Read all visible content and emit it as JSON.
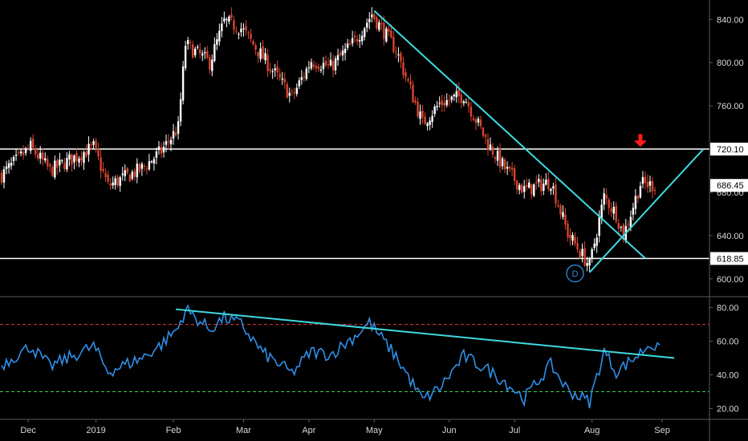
{
  "colors": {
    "background": "#000000",
    "up": "#ffffff",
    "down": "#d8452f",
    "trendline": "#3fd9e0",
    "rsi": "#2f8fe8",
    "rsi_overbought": "#e03a32",
    "rsi_oversold": "#3fd04a",
    "arrow": "#ff1a1a",
    "axis_text": "#d8d8d8"
  },
  "chart_data": [
    {
      "type": "candlestick",
      "ylim": [
        585,
        858
      ],
      "y_ticks": [
        "600.00",
        "640.00",
        "680.00",
        "720.00",
        "760.00",
        "800.00",
        "840.00"
      ],
      "price_labels": [
        {
          "value": 720.1,
          "text": "720.10"
        },
        {
          "value": 686.45,
          "text": "686.45"
        },
        {
          "value": 618.85,
          "text": "618.85"
        }
      ],
      "horizontal_lines": [
        720.1,
        618.85
      ],
      "trendlines": [
        {
          "from": {
            "day": 154,
            "price": 848
          },
          "to": {
            "day": 266,
            "price": 619
          }
        },
        {
          "from": {
            "day": 243,
            "price": 606
          },
          "to": {
            "day": 290,
            "price": 720
          }
        }
      ],
      "pattern_label": "D",
      "pattern_label_at": {
        "day": 237,
        "price": 605
      },
      "sell_arrow_at": {
        "day": 264,
        "price": 725
      },
      "key_points": [
        {
          "day": 0,
          "price": 696
        },
        {
          "day": 12,
          "price": 722
        },
        {
          "day": 20,
          "price": 700
        },
        {
          "day": 38,
          "price": 722
        },
        {
          "day": 44,
          "price": 686
        },
        {
          "day": 58,
          "price": 702
        },
        {
          "day": 66,
          "price": 718
        },
        {
          "day": 73,
          "price": 740
        },
        {
          "day": 76,
          "price": 817
        },
        {
          "day": 86,
          "price": 800
        },
        {
          "day": 92,
          "price": 838
        },
        {
          "day": 99,
          "price": 832
        },
        {
          "day": 108,
          "price": 805
        },
        {
          "day": 120,
          "price": 768
        },
        {
          "day": 128,
          "price": 802
        },
        {
          "day": 136,
          "price": 796
        },
        {
          "day": 146,
          "price": 820
        },
        {
          "day": 153,
          "price": 845
        },
        {
          "day": 163,
          "price": 812
        },
        {
          "day": 174,
          "price": 744
        },
        {
          "day": 181,
          "price": 762
        },
        {
          "day": 191,
          "price": 770
        },
        {
          "day": 201,
          "price": 725
        },
        {
          "day": 208,
          "price": 702
        },
        {
          "day": 216,
          "price": 682
        },
        {
          "day": 227,
          "price": 690
        },
        {
          "day": 234,
          "price": 642
        },
        {
          "day": 243,
          "price": 612
        },
        {
          "day": 249,
          "price": 676
        },
        {
          "day": 254,
          "price": 660
        },
        {
          "day": 257,
          "price": 640
        },
        {
          "day": 264,
          "price": 688
        },
        {
          "day": 270,
          "price": 686.45
        }
      ]
    },
    {
      "type": "line",
      "ylim": [
        15,
        86
      ],
      "y_ticks": [
        "20.00",
        "40.00",
        "60.00",
        "80.00"
      ],
      "overbought": 70,
      "oversold": 30,
      "trendline": {
        "from": {
          "day": 72,
          "value": 79
        },
        "to": {
          "day": 278,
          "value": 50
        }
      },
      "key_points": [
        {
          "day": 0,
          "value": 46
        },
        {
          "day": 12,
          "value": 57
        },
        {
          "day": 20,
          "value": 45
        },
        {
          "day": 38,
          "value": 57
        },
        {
          "day": 44,
          "value": 42
        },
        {
          "day": 58,
          "value": 50
        },
        {
          "day": 66,
          "value": 58
        },
        {
          "day": 73,
          "value": 68
        },
        {
          "day": 76,
          "value": 79
        },
        {
          "day": 86,
          "value": 67
        },
        {
          "day": 92,
          "value": 74
        },
        {
          "day": 99,
          "value": 70
        },
        {
          "day": 108,
          "value": 53
        },
        {
          "day": 120,
          "value": 41
        },
        {
          "day": 128,
          "value": 54
        },
        {
          "day": 136,
          "value": 52
        },
        {
          "day": 146,
          "value": 63
        },
        {
          "day": 152,
          "value": 71
        },
        {
          "day": 163,
          "value": 51
        },
        {
          "day": 174,
          "value": 25
        },
        {
          "day": 181,
          "value": 32
        },
        {
          "day": 191,
          "value": 51
        },
        {
          "day": 201,
          "value": 43
        },
        {
          "day": 208,
          "value": 36
        },
        {
          "day": 216,
          "value": 26
        },
        {
          "day": 227,
          "value": 46
        },
        {
          "day": 234,
          "value": 31
        },
        {
          "day": 243,
          "value": 24
        },
        {
          "day": 249,
          "value": 54
        },
        {
          "day": 254,
          "value": 42
        },
        {
          "day": 257,
          "value": 45
        },
        {
          "day": 264,
          "value": 53
        },
        {
          "day": 268,
          "value": 59
        },
        {
          "day": 272,
          "value": 54
        }
      ]
    }
  ],
  "x_axis": {
    "labels": [
      {
        "text": "Dec",
        "day": 11
      },
      {
        "text": "2019",
        "day": 39
      },
      {
        "text": "Feb",
        "day": 71
      },
      {
        "text": "Mar",
        "day": 100
      },
      {
        "text": "Apr",
        "day": 127
      },
      {
        "text": "May",
        "day": 154
      },
      {
        "text": "Jun",
        "day": 185
      },
      {
        "text": "Jul",
        "day": 212
      },
      {
        "text": "Aug",
        "day": 244
      },
      {
        "text": "Sep",
        "day": 273
      }
    ]
  }
}
